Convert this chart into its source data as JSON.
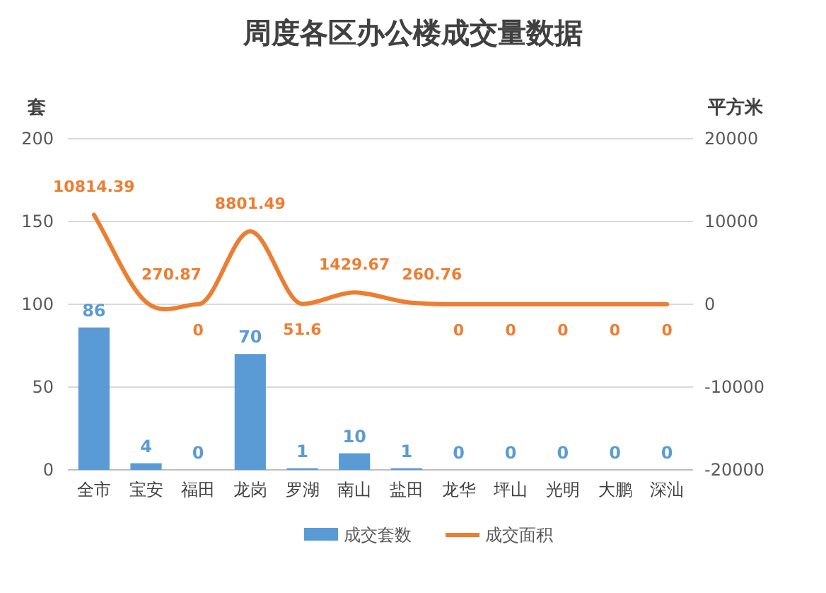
{
  "chart_data": {
    "type": "bar",
    "title": "周度各区办公楼成交量数据",
    "ylabel": "套",
    "y2label": "平方米",
    "categories": [
      "全市",
      "宝安",
      "福田",
      "龙岗",
      "罗湖",
      "南山",
      "盐田",
      "龙华",
      "坪山",
      "光明",
      "大鹏",
      "深汕"
    ],
    "series": [
      {
        "name": "成交套数",
        "color": "#5b9bd5",
        "values": [
          86,
          4,
          0,
          70,
          1,
          10,
          1,
          0,
          0,
          0,
          0,
          0
        ]
      },
      {
        "name": "成交面积",
        "type": "line",
        "axis": "y2",
        "color": "#ed7d31",
        "values": [
          10814.39,
          270.87,
          0,
          8801.49,
          51.6,
          1429.67,
          260.76,
          0,
          0,
          0,
          0,
          0
        ]
      }
    ],
    "ylim": [
      0,
      200
    ],
    "yticks": [
      0,
      50,
      100,
      150,
      200
    ],
    "y2lim": [
      -20000,
      20000
    ],
    "y2ticks": [
      -20000,
      -10000,
      0,
      10000,
      20000
    ],
    "grid": "y",
    "legend": "bottom",
    "data_labels": true
  }
}
